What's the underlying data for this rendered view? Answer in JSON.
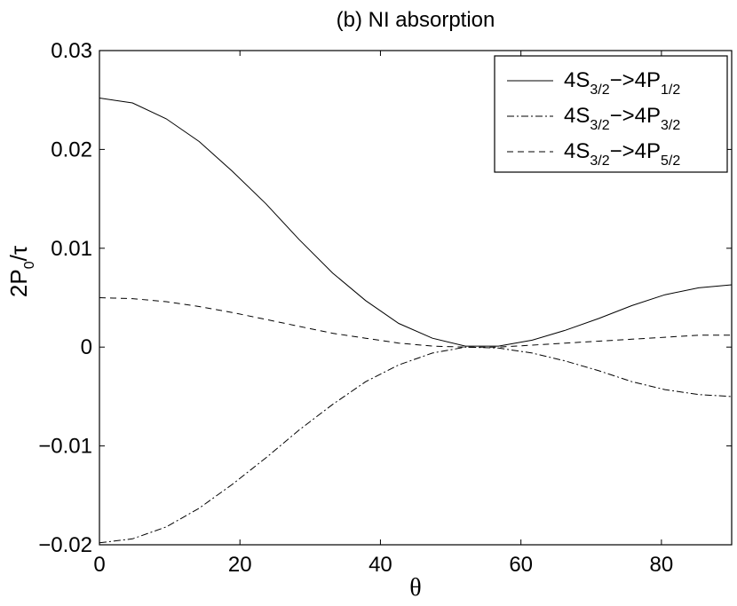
{
  "chart_data": {
    "type": "line",
    "title": "(b) NI absorption",
    "xlabel": "θ",
    "ylabel": {
      "main": "2P",
      "sub": "0",
      "tail": "/τ"
    },
    "xlim": [
      0,
      90
    ],
    "ylim": [
      -0.02,
      0.03
    ],
    "xticks": [
      0,
      20,
      40,
      60,
      80
    ],
    "yticks": [
      -0.02,
      -0.01,
      0,
      0.01,
      0.02,
      0.03
    ],
    "xtick_labels": [
      "0",
      "20",
      "40",
      "60",
      "80"
    ],
    "ytick_labels": [
      "−0.02",
      "−0.01",
      "0",
      "0.01",
      "0.02",
      "0.03"
    ],
    "grid": false,
    "legend_position": "top-right",
    "series": [
      {
        "name": "4S3/2->4P1/2",
        "legend": {
          "a": "4S",
          "sub1": "3/2",
          "b": "−>4P",
          "sub2": "1/2"
        },
        "style": "solid",
        "x": [
          0,
          4.7,
          9.5,
          14.2,
          18.9,
          23.7,
          28.4,
          33.2,
          37.9,
          42.6,
          47.4,
          52.1,
          56.8,
          61.6,
          66.3,
          71.1,
          75.8,
          80.5,
          85.3,
          90
        ],
        "y": [
          0.0252,
          0.0247,
          0.0231,
          0.0208,
          0.0178,
          0.0145,
          0.0109,
          0.0075,
          0.0047,
          0.0024,
          0.0009,
          0.0001,
          0.0001,
          0.0007,
          0.0017,
          0.0029,
          0.0042,
          0.0053,
          0.006,
          0.0063
        ]
      },
      {
        "name": "4S3/2->4P3/2",
        "legend": {
          "a": "4S",
          "sub1": "3/2",
          "b": "−>4P",
          "sub2": "3/2"
        },
        "style": "dashdot",
        "x": [
          0,
          4.7,
          9.5,
          14.2,
          18.9,
          23.7,
          28.4,
          33.2,
          37.9,
          42.6,
          47.4,
          52.1,
          56.8,
          61.6,
          66.3,
          71.1,
          75.8,
          80.5,
          85.3,
          90
        ],
        "y": [
          -0.0198,
          -0.0194,
          -0.0182,
          -0.0163,
          -0.0139,
          -0.0112,
          -0.0084,
          -0.0058,
          -0.0035,
          -0.0018,
          -0.0006,
          0.0,
          -0.0001,
          -0.0006,
          -0.0014,
          -0.0024,
          -0.0035,
          -0.0043,
          -0.0048,
          -0.005
        ]
      },
      {
        "name": "4S3/2->4P5/2",
        "legend": {
          "a": "4S",
          "sub1": "3/2",
          "b": "−>4P",
          "sub2": "5/2"
        },
        "style": "dashed",
        "x": [
          0,
          4.7,
          9.5,
          14.2,
          18.9,
          23.7,
          28.4,
          33.2,
          37.9,
          42.6,
          47.4,
          52.1,
          56.8,
          61.6,
          66.3,
          71.1,
          75.8,
          80.5,
          85.3,
          90
        ],
        "y": [
          0.005,
          0.0049,
          0.0046,
          0.0041,
          0.0035,
          0.0028,
          0.0021,
          0.0014,
          0.0009,
          0.0004,
          0.0001,
          0.0,
          0.0,
          0.0002,
          0.0004,
          0.0006,
          0.0008,
          0.001,
          0.0012,
          0.0012
        ]
      }
    ]
  }
}
